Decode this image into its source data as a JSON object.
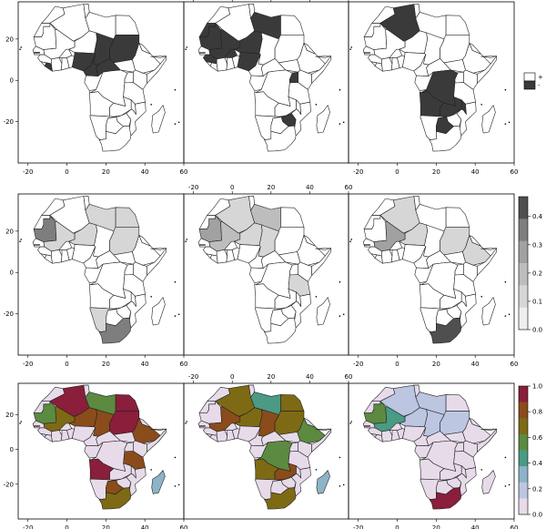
{
  "figure": {
    "rows": [
      {
        "row": "binary",
        "legend_type": "binary",
        "legend_labels": [
          "+",
          "-"
        ],
        "colorbar_ticks": []
      },
      {
        "row": "gray",
        "legend_type": "colorbar",
        "legend_labels": [],
        "colorbar_ticks": [
          "0.0",
          "0.1",
          "0.2",
          "0.3",
          "0.4"
        ]
      },
      {
        "row": "color",
        "legend_type": "colorbar",
        "legend_labels": [],
        "colorbar_ticks": [
          "0.0",
          "0.2",
          "0.4",
          "0.6",
          "0.8",
          "1.0"
        ]
      }
    ],
    "x_ticks": [
      "-20",
      "0",
      "20",
      "40",
      "60"
    ],
    "y_ticks": [
      "20",
      "0",
      "-20"
    ],
    "colors": {
      "binary_low": "#ffffff",
      "binary_high": "#3a3a3a",
      "gray_ramp": [
        "#eeeeee",
        "#d6d6d6",
        "#bdbdbd",
        "#a1a1a1",
        "#7e7e7e",
        "#4f4f4f"
      ],
      "color_ramp": [
        "#e7dbea",
        "#bcc6e1",
        "#8db4c6",
        "#4a9a84",
        "#5c8a40",
        "#7e6a14",
        "#8a4c1a",
        "#8a1e3b"
      ],
      "outline": "#222222"
    }
  },
  "chart_data": [
    {
      "type": "heatmap",
      "map": "Africa",
      "row": 1,
      "col": 1,
      "scale": "binary",
      "legend": [
        "+",
        "-"
      ],
      "highlighted_regions_high": [
        "Nigeria",
        "Chad",
        "Sudan",
        "Central African Republic",
        "Cameroon",
        "Gambia",
        "Liberia"
      ]
    },
    {
      "type": "heatmap",
      "map": "Africa",
      "row": 1,
      "col": 2,
      "scale": "binary",
      "highlighted_regions_high": [
        "Mali",
        "Mauritania",
        "Niger",
        "Libya",
        "Western Sahara",
        "Burkina Faso",
        "Nigeria",
        "Uganda",
        "Zimbabwe",
        "Guinea"
      ]
    },
    {
      "type": "heatmap",
      "map": "Africa",
      "row": 1,
      "col": 3,
      "scale": "binary",
      "highlighted_regions_high": [
        "Algeria",
        "Angola",
        "DR Congo",
        "Zambia",
        "Malawi",
        "Botswana"
      ]
    },
    {
      "type": "heatmap",
      "map": "Africa",
      "row": 2,
      "col": 1,
      "scale": "continuous",
      "range": [
        0,
        0.45
      ],
      "regions": {
        "South Africa": 0.38,
        "Mauritania": 0.32,
        "Namibia": 0.12,
        "Libya": 0.1,
        "Sudan": 0.08,
        "Egypt": 0.06,
        "Niger": 0.08,
        "Mali": 0.07
      }
    },
    {
      "type": "heatmap",
      "map": "Africa",
      "row": 2,
      "col": 2,
      "scale": "continuous",
      "range": [
        0,
        0.45
      ],
      "regions": {
        "Mauritania": 0.25,
        "Mali": 0.18,
        "Algeria": 0.12,
        "Libya": 0.14,
        "Niger": 0.1,
        "Chad": 0.06,
        "Tanzania": 0.05
      }
    },
    {
      "type": "heatmap",
      "map": "Africa",
      "row": 2,
      "col": 3,
      "scale": "continuous",
      "range": [
        0,
        0.45
      ],
      "regions": {
        "South Africa": 0.44,
        "Mali": 0.3,
        "Sudan": 0.12,
        "Niger": 0.1,
        "Algeria": 0.08,
        "Ethiopia": 0.06
      }
    },
    {
      "type": "heatmap",
      "map": "Africa",
      "row": 3,
      "col": 1,
      "scale": "continuous",
      "range": [
        0,
        1
      ],
      "regions": {
        "Algeria": 0.95,
        "Libya": 0.55,
        "Egypt": 0.95,
        "Sudan": 0.95,
        "Chad": 0.85,
        "Niger": 0.8,
        "Mali": 0.75,
        "Mauritania": 0.6,
        "Ethiopia": 0.9,
        "Angola": 0.95,
        "Tanzania": 0.8,
        "Madagascar": 0.3,
        "Botswana": 0.8,
        "South Africa": 0.75
      }
    },
    {
      "type": "heatmap",
      "map": "Africa",
      "row": 3,
      "col": 2,
      "scale": "continuous",
      "range": [
        0,
        1
      ],
      "regions": {
        "Algeria": 0.7,
        "Libya": 0.4,
        "Egypt": 0.7,
        "Sudan": 0.65,
        "Chad": 0.8,
        "Niger": 0.7,
        "Mali": 0.85,
        "Ethiopia": 0.55,
        "DR Congo": 0.6,
        "Angola": 0.7,
        "Zambia": 0.8,
        "Madagascar": 0.3,
        "South Africa": 0.75
      }
    },
    {
      "type": "heatmap",
      "map": "Africa",
      "row": 3,
      "col": 3,
      "scale": "continuous",
      "range": [
        0,
        1
      ],
      "regions": {
        "Mauritania": 0.5,
        "Mali": 0.4,
        "Algeria": 0.15,
        "Libya": 0.1,
        "Egypt": 0.05,
        "Sudan": 0.08,
        "Chad": 0.1,
        "South Africa": 0.95,
        "Niger": 0.08
      }
    }
  ]
}
